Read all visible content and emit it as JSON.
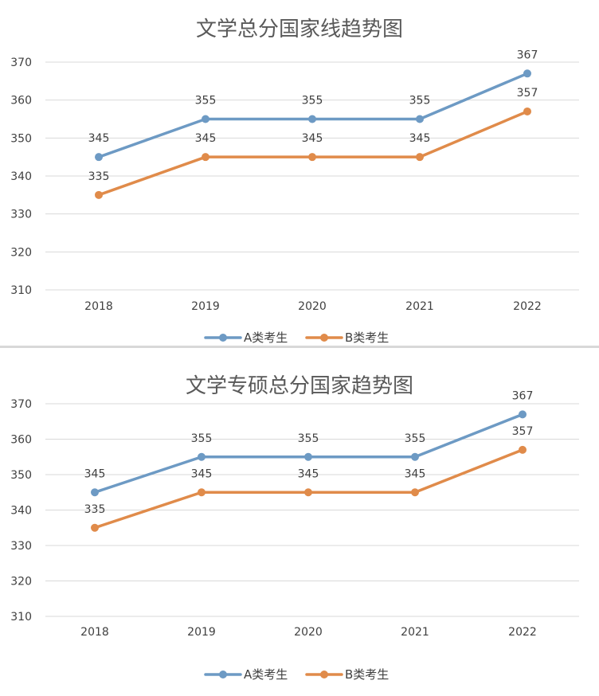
{
  "chart_data": [
    {
      "type": "line",
      "title": "文学总分国家线趋势图",
      "categories": [
        "2018",
        "2019",
        "2020",
        "2021",
        "2022"
      ],
      "series": [
        {
          "name": "A类考生",
          "values": [
            345,
            355,
            355,
            355,
            367
          ],
          "color": "#6d9ac4"
        },
        {
          "name": "B类考生",
          "values": [
            335,
            345,
            345,
            345,
            357
          ],
          "color": "#e08b4a"
        }
      ],
      "yticks": [
        "310",
        "320",
        "330",
        "340",
        "350",
        "360",
        "370"
      ],
      "ylim": [
        310,
        370
      ],
      "grid": true,
      "legend": "bottom"
    },
    {
      "type": "line",
      "title": "文学专硕总分国家趋势图",
      "categories": [
        "2018",
        "2019",
        "2020",
        "2021",
        "2022"
      ],
      "series": [
        {
          "name": "A类考生",
          "values": [
            345,
            355,
            355,
            355,
            367
          ],
          "color": "#6d9ac4"
        },
        {
          "name": "B类考生",
          "values": [
            335,
            345,
            345,
            345,
            357
          ],
          "color": "#e08b4a"
        }
      ],
      "yticks": [
        "310",
        "320",
        "330",
        "340",
        "350",
        "360",
        "370"
      ],
      "ylim": [
        310,
        370
      ],
      "grid": true,
      "legend": "bottom"
    }
  ]
}
